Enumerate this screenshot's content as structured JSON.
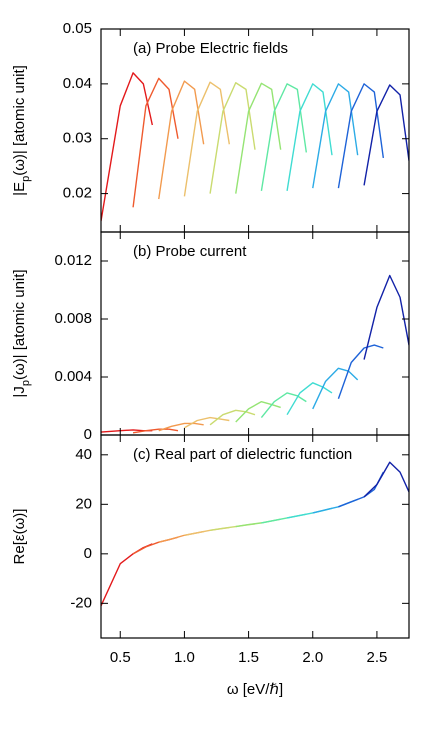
{
  "chart_data": [
    {
      "type": "line",
      "annotation": "(a) Probe Electric fields",
      "ylabel": [
        "|E",
        "p",
        "(ω)| [atomic unit]"
      ],
      "xlim": [
        0.35,
        2.75
      ],
      "ylim": [
        0.013,
        0.05
      ],
      "yticks": [
        0.02,
        0.03,
        0.04,
        0.05
      ],
      "series": [
        {
          "color": "#e3191b",
          "x": [
            0.35,
            0.5,
            0.6,
            0.68,
            0.75
          ],
          "values": [
            0.015,
            0.036,
            0.042,
            0.04,
            0.0325
          ]
        },
        {
          "color": "#ef5a2e",
          "x": [
            0.6,
            0.7,
            0.8,
            0.88,
            0.95
          ],
          "values": [
            0.0175,
            0.036,
            0.041,
            0.039,
            0.03
          ]
        },
        {
          "color": "#f29a4e",
          "x": [
            0.8,
            0.9,
            1.0,
            1.08,
            1.15
          ],
          "values": [
            0.019,
            0.035,
            0.0405,
            0.039,
            0.029
          ]
        },
        {
          "color": "#ecc06c",
          "x": [
            1.0,
            1.1,
            1.2,
            1.28,
            1.35
          ],
          "values": [
            0.0195,
            0.035,
            0.0403,
            0.039,
            0.029
          ]
        },
        {
          "color": "#cadb70",
          "x": [
            1.2,
            1.3,
            1.4,
            1.48,
            1.55
          ],
          "values": [
            0.02,
            0.035,
            0.0402,
            0.039,
            0.028
          ]
        },
        {
          "color": "#95e474",
          "x": [
            1.4,
            1.5,
            1.6,
            1.68,
            1.75
          ],
          "values": [
            0.02,
            0.035,
            0.0401,
            0.039,
            0.028
          ]
        },
        {
          "color": "#5fe8a3",
          "x": [
            1.6,
            1.7,
            1.8,
            1.88,
            1.95
          ],
          "values": [
            0.0205,
            0.035,
            0.04,
            0.039,
            0.0275
          ]
        },
        {
          "color": "#3fdcd2",
          "x": [
            1.8,
            1.9,
            2.0,
            2.08,
            2.15
          ],
          "values": [
            0.0205,
            0.035,
            0.04,
            0.0385,
            0.027
          ]
        },
        {
          "color": "#2cabe6",
          "x": [
            2.0,
            2.1,
            2.2,
            2.28,
            2.35
          ],
          "values": [
            0.021,
            0.035,
            0.04,
            0.0385,
            0.027
          ]
        },
        {
          "color": "#1e63d8",
          "x": [
            2.2,
            2.3,
            2.4,
            2.48,
            2.55
          ],
          "values": [
            0.021,
            0.035,
            0.04,
            0.0385,
            0.0265
          ]
        },
        {
          "color": "#1222a8",
          "x": [
            2.4,
            2.5,
            2.6,
            2.68,
            2.75
          ],
          "values": [
            0.0215,
            0.035,
            0.0398,
            0.038,
            0.026
          ]
        }
      ]
    },
    {
      "type": "line",
      "annotation": "(b) Probe current",
      "ylabel": [
        "|J",
        "p",
        "(ω)| [atomic unit]"
      ],
      "xlim": [
        0.35,
        2.75
      ],
      "ylim": [
        0,
        0.014
      ],
      "yticks": [
        0,
        0.004,
        0.008,
        0.012
      ],
      "series": [
        {
          "color": "#e3191b",
          "x": [
            0.35,
            0.5,
            0.6,
            0.68,
            0.75
          ],
          "values": [
            0.0002,
            0.0003,
            0.00035,
            0.0003,
            0.0003
          ]
        },
        {
          "color": "#ef5a2e",
          "x": [
            0.6,
            0.7,
            0.8,
            0.88,
            0.95
          ],
          "values": [
            0.00015,
            0.0003,
            0.0004,
            0.0004,
            0.0003
          ]
        },
        {
          "color": "#f29a4e",
          "x": [
            0.8,
            0.9,
            1.0,
            1.08,
            1.15
          ],
          "values": [
            0.0003,
            0.0006,
            0.0008,
            0.0008,
            0.0007
          ]
        },
        {
          "color": "#ecc06c",
          "x": [
            1.0,
            1.1,
            1.2,
            1.28,
            1.35
          ],
          "values": [
            0.0005,
            0.001,
            0.0012,
            0.0011,
            0.001
          ]
        },
        {
          "color": "#cadb70",
          "x": [
            1.2,
            1.3,
            1.4,
            1.48,
            1.55
          ],
          "values": [
            0.0007,
            0.0014,
            0.0017,
            0.0016,
            0.0014
          ]
        },
        {
          "color": "#95e474",
          "x": [
            1.4,
            1.5,
            1.6,
            1.68,
            1.75
          ],
          "values": [
            0.0009,
            0.0018,
            0.0023,
            0.0021,
            0.0019
          ]
        },
        {
          "color": "#5fe8a3",
          "x": [
            1.6,
            1.7,
            1.8,
            1.88,
            1.95
          ],
          "values": [
            0.0012,
            0.0023,
            0.0029,
            0.0027,
            0.0023
          ]
        },
        {
          "color": "#3fdcd2",
          "x": [
            1.8,
            1.9,
            2.0,
            2.08,
            2.15
          ],
          "values": [
            0.0014,
            0.0029,
            0.0036,
            0.0033,
            0.0029
          ]
        },
        {
          "color": "#2cabe6",
          "x": [
            2.0,
            2.1,
            2.2,
            2.28,
            2.35
          ],
          "values": [
            0.0018,
            0.0037,
            0.0046,
            0.0044,
            0.0038
          ]
        },
        {
          "color": "#1e63d8",
          "x": [
            2.2,
            2.3,
            2.4,
            2.48,
            2.55
          ],
          "values": [
            0.0025,
            0.005,
            0.006,
            0.0062,
            0.006
          ]
        },
        {
          "color": "#1222a8",
          "x": [
            2.4,
            2.5,
            2.6,
            2.68,
            2.75
          ],
          "values": [
            0.0052,
            0.0088,
            0.011,
            0.0095,
            0.0062
          ]
        }
      ]
    },
    {
      "type": "line",
      "annotation": "(c) Real part of dielectric function",
      "ylabel": [
        "Re[ε(ω)]"
      ],
      "xlabel": "ω [eV/ℏ]",
      "xlim": [
        0.35,
        2.75
      ],
      "xticks": [
        0.5,
        {
          "value": 1,
          "label": "1.0"
        },
        1.5,
        {
          "value": 2,
          "label": "2.0"
        },
        2.5
      ],
      "ylim": [
        -34,
        48
      ],
      "yticks": [
        -20,
        0,
        20,
        40
      ],
      "series": [
        {
          "color": "#e3191b",
          "x": [
            0.35,
            0.5,
            0.6,
            0.68,
            0.75
          ],
          "values": [
            -21,
            -4,
            0,
            2.5,
            4
          ]
        },
        {
          "color": "#ef5a2e",
          "x": [
            0.6,
            0.7,
            0.8,
            0.88,
            0.95
          ],
          "values": [
            0,
            2.8,
            4.7,
            5.7,
            6.7
          ]
        },
        {
          "color": "#f29a4e",
          "x": [
            0.8,
            0.9,
            1.0,
            1.08,
            1.15
          ],
          "values": [
            4.7,
            6,
            7.5,
            8.3,
            9
          ]
        },
        {
          "color": "#ecc06c",
          "x": [
            1.0,
            1.1,
            1.2,
            1.28,
            1.35
          ],
          "values": [
            7.5,
            8.5,
            9.5,
            10.1,
            10.6
          ]
        },
        {
          "color": "#cadb70",
          "x": [
            1.2,
            1.3,
            1.4,
            1.48,
            1.55
          ],
          "values": [
            9.5,
            10.3,
            11,
            11.6,
            12.1
          ]
        },
        {
          "color": "#95e474",
          "x": [
            1.4,
            1.5,
            1.6,
            1.68,
            1.75
          ],
          "values": [
            11,
            11.8,
            12.5,
            13.3,
            14
          ]
        },
        {
          "color": "#5fe8a3",
          "x": [
            1.6,
            1.7,
            1.8,
            1.88,
            1.95
          ],
          "values": [
            12.5,
            13.5,
            14.5,
            15.3,
            16
          ]
        },
        {
          "color": "#3fdcd2",
          "x": [
            1.8,
            1.9,
            2.0,
            2.08,
            2.15
          ],
          "values": [
            14.5,
            15.5,
            16.5,
            17.5,
            18.4
          ]
        },
        {
          "color": "#2cabe6",
          "x": [
            2.0,
            2.1,
            2.2,
            2.28,
            2.35
          ],
          "values": [
            16.5,
            17.8,
            19,
            20.6,
            22
          ]
        },
        {
          "color": "#1e63d8",
          "x": [
            2.2,
            2.3,
            2.4,
            2.48,
            2.55
          ],
          "values": [
            19,
            21,
            23,
            26,
            33
          ]
        },
        {
          "color": "#1222a8",
          "x": [
            2.4,
            2.5,
            2.6,
            2.68,
            2.75
          ],
          "values": [
            23,
            28,
            37,
            33,
            25
          ]
        }
      ]
    }
  ]
}
